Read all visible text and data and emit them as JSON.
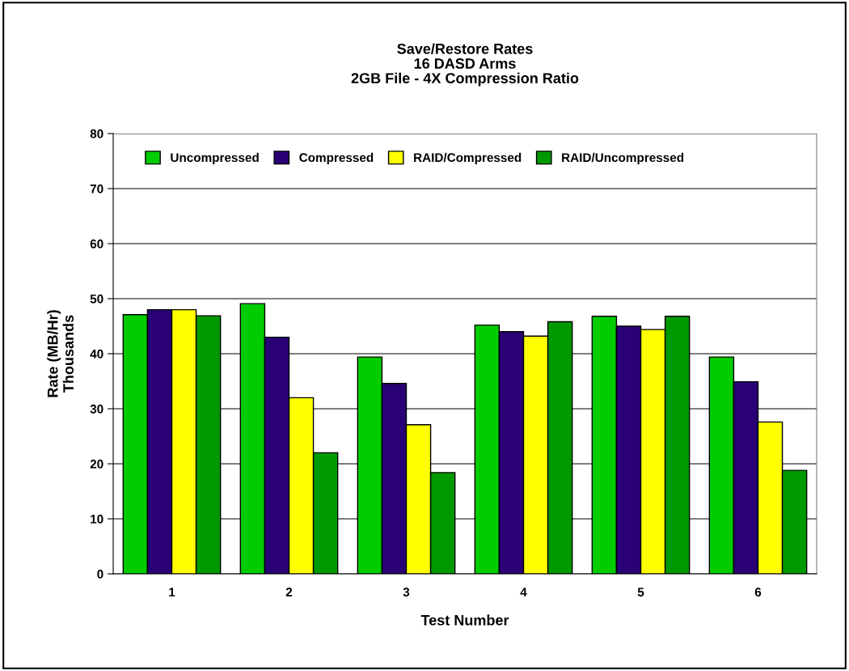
{
  "chart_data": {
    "type": "bar",
    "title": "Save/Restore Rates\n16 DASD Arms\n2GB File - 4X Compression Ratio",
    "xlabel": "Test Number",
    "ylabel": "Rate (MB/Hr)\nThousands",
    "categories": [
      "1",
      "2",
      "3",
      "4",
      "5",
      "6"
    ],
    "series": [
      {
        "name": "Uncompressed",
        "color": "#00cc00",
        "values": [
          47.1,
          49.1,
          39.4,
          45.2,
          46.8,
          39.4
        ]
      },
      {
        "name": "Compressed",
        "color": "#290075",
        "values": [
          48,
          43,
          34.6,
          44,
          45,
          34.9
        ]
      },
      {
        "name": "RAID/Compressed",
        "color": "#ffff00",
        "values": [
          48,
          32,
          27.1,
          43.2,
          44.4,
          27.6
        ]
      },
      {
        "name": "RAID/Uncompressed",
        "color": "#009900",
        "values": [
          46.9,
          22,
          18.4,
          45.8,
          46.8,
          18.8
        ]
      }
    ],
    "ylim": [
      0,
      80
    ],
    "yticks": [
      0,
      10,
      20,
      30,
      40,
      50,
      60,
      70,
      80
    ],
    "grid": "y",
    "legend": "top left"
  }
}
